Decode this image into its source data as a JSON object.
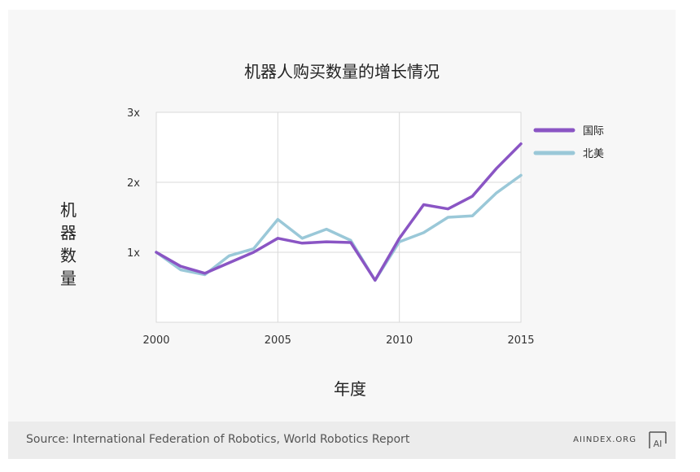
{
  "chart_data": {
    "type": "line",
    "title": "机器人购买数量的增长情况",
    "xlabel": "年度",
    "ylabel": "机器数量",
    "x": [
      2000,
      2001,
      2002,
      2003,
      2004,
      2005,
      2006,
      2007,
      2008,
      2009,
      2010,
      2011,
      2012,
      2013,
      2014,
      2015
    ],
    "xticks": [
      "2000",
      "2005",
      "2010",
      "2015"
    ],
    "yticks": [
      "1x",
      "2x",
      "3x"
    ],
    "ylim": [
      0,
      3
    ],
    "xlim": [
      2000,
      2015
    ],
    "grid": true,
    "legend_position": "right",
    "series": [
      {
        "name": "国际",
        "color": "#8a55c4",
        "values": [
          1.0,
          0.8,
          0.7,
          0.85,
          1.0,
          1.2,
          1.13,
          1.15,
          1.14,
          0.6,
          1.2,
          1.68,
          1.62,
          1.8,
          2.2,
          2.55
        ]
      },
      {
        "name": "北美",
        "color": "#9ac8d8",
        "values": [
          1.0,
          0.75,
          0.68,
          0.95,
          1.05,
          1.47,
          1.2,
          1.33,
          1.17,
          0.6,
          1.15,
          1.28,
          1.5,
          1.52,
          1.85,
          2.1
        ]
      }
    ]
  },
  "footer": {
    "source": "Source: International Federation of Robotics, World Robotics Report",
    "brand": "AIINDEX.ORG",
    "logo_text": "AI"
  }
}
